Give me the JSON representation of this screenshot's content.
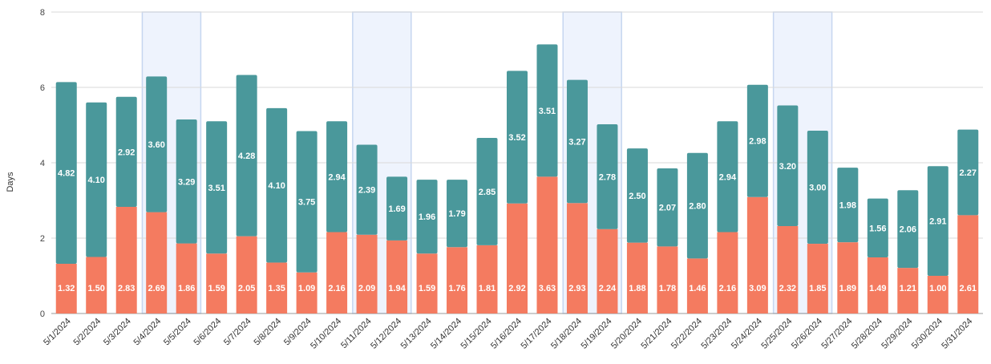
{
  "chart_data": {
    "type": "bar",
    "stacked": true,
    "ylabel": "Days",
    "ylim": [
      0,
      8
    ],
    "yticks": [
      0,
      2,
      4,
      6,
      8
    ],
    "grid": true,
    "categories": [
      "5/1/2024",
      "5/2/2024",
      "5/3/2024",
      "5/4/2024",
      "5/5/2024",
      "5/6/2024",
      "5/7/2024",
      "5/8/2024",
      "5/9/2024",
      "5/10/2024",
      "5/11/2024",
      "5/12/2024",
      "5/13/2024",
      "5/14/2024",
      "5/15/2024",
      "5/16/2024",
      "5/17/2024",
      "5/18/2024",
      "5/19/2024",
      "5/20/2024",
      "5/21/2024",
      "5/22/2024",
      "5/23/2024",
      "5/24/2024",
      "5/25/2024",
      "5/26/2024",
      "5/27/2024",
      "5/28/2024",
      "5/29/2024",
      "5/30/2024",
      "5/31/2024"
    ],
    "series": [
      {
        "color": "#f47b60",
        "values": [
          1.32,
          1.5,
          2.83,
          2.69,
          1.86,
          1.59,
          2.05,
          1.35,
          1.09,
          2.16,
          2.09,
          1.94,
          1.59,
          1.76,
          1.81,
          2.92,
          3.63,
          2.93,
          2.24,
          1.88,
          1.78,
          1.46,
          2.16,
          3.09,
          2.32,
          1.85,
          1.89,
          1.49,
          1.21,
          1.0,
          2.61
        ]
      },
      {
        "color": "#4a989b",
        "values": [
          4.82,
          4.1,
          2.92,
          3.6,
          3.29,
          3.51,
          4.28,
          4.1,
          3.75,
          2.94,
          2.39,
          1.69,
          1.96,
          1.79,
          2.85,
          3.52,
          3.51,
          3.27,
          2.78,
          2.5,
          2.07,
          2.8,
          2.94,
          2.98,
          3.2,
          3.0,
          1.98,
          1.56,
          2.06,
          2.91,
          2.27
        ]
      }
    ],
    "highlighted_ranges": [
      [
        "5/4/2024",
        "5/5/2024"
      ],
      [
        "5/11/2024",
        "5/12/2024"
      ],
      [
        "5/18/2024",
        "5/19/2024"
      ],
      [
        "5/25/2024",
        "5/26/2024"
      ]
    ],
    "highlight_color": "#eef3fd",
    "highlight_border": "#c6d6f0",
    "gridline_color": "#d9d9d9"
  }
}
